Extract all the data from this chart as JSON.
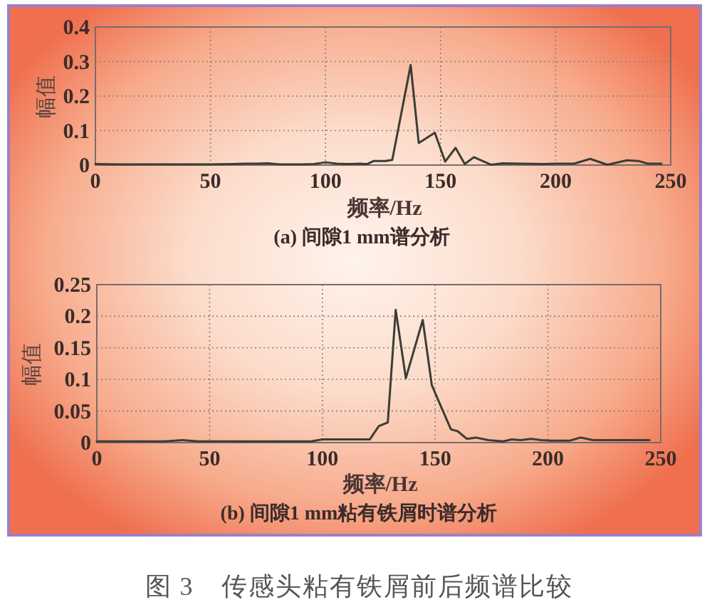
{
  "chart_data": [
    {
      "type": "line",
      "title": "(a) 间隙1 mm谱分析",
      "xlabel": "频率/Hz",
      "ylabel": "幅值",
      "color": "#3d3d36",
      "x": [
        0,
        10,
        20,
        30,
        40,
        50,
        60,
        65,
        70,
        75,
        80,
        90,
        95,
        100,
        105,
        110,
        115,
        118,
        121,
        126,
        129,
        137,
        140.5,
        147.5,
        152,
        156.5,
        160.5,
        164.5,
        172,
        177,
        185,
        195,
        200,
        208,
        215,
        222.5,
        231,
        236,
        240,
        246
      ],
      "values": [
        0.003,
        0.002,
        0.002,
        0.002,
        0.002,
        0.002,
        0.003,
        0.004,
        0.004,
        0.005,
        0.002,
        0.002,
        0.003,
        0.008,
        0.004,
        0.003,
        0.004,
        0.003,
        0.012,
        0.012,
        0.015,
        0.29,
        0.064,
        0.094,
        0.01,
        0.05,
        0.003,
        0.023,
        0.001,
        0.005,
        0.004,
        0.003,
        0.004,
        0.004,
        0.018,
        0.001,
        0.014,
        0.012,
        0.004,
        0.004
      ],
      "xlim": [
        0,
        250
      ],
      "ylim": [
        0,
        0.4
      ],
      "xticks": [
        0,
        50,
        100,
        150,
        200,
        250
      ],
      "yticks": [
        0,
        0.1,
        0.2,
        0.3,
        0.4
      ],
      "grid": true
    },
    {
      "type": "line",
      "title": "(b) 间隙1 mm粘有铁屑时谱分析",
      "xlabel": "频率/Hz",
      "ylabel": "幅值",
      "color": "#3d3d36",
      "x": [
        0,
        10,
        20,
        30,
        38,
        45,
        60,
        80,
        95,
        100,
        110,
        117,
        121,
        125,
        129,
        132.5,
        137,
        144.5,
        148.5,
        151.5,
        157,
        160,
        164,
        168,
        173.5,
        180,
        184,
        188,
        192.5,
        197,
        201,
        209.5,
        214.5,
        220,
        228.5,
        237,
        245
      ],
      "values": [
        0.002,
        0.002,
        0.002,
        0.002,
        0.004,
        0.002,
        0.002,
        0.002,
        0.002,
        0.005,
        0.005,
        0.005,
        0.005,
        0.026,
        0.032,
        0.21,
        0.102,
        0.194,
        0.091,
        0.066,
        0.021,
        0.018,
        0.006,
        0.008,
        0.004,
        0.002,
        0.005,
        0.004,
        0.006,
        0.004,
        0.003,
        0.003,
        0.008,
        0.004,
        0.004,
        0.004,
        0.004
      ],
      "xlim": [
        0,
        250
      ],
      "ylim": [
        0,
        0.25
      ],
      "xticks": [
        0,
        50,
        100,
        150,
        200,
        250
      ],
      "yticks": [
        0,
        0.05,
        0.1,
        0.15,
        0.2,
        0.25
      ],
      "grid": true,
      "annotations": [
        "图 3　传感头粘有铁屑前后频谱比较"
      ]
    }
  ]
}
